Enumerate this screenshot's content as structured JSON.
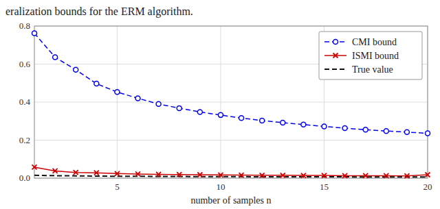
{
  "chart_data": {
    "type": "line",
    "title": "eralization bounds for the ERM algorithm.",
    "x_label": "number of samples n",
    "x": [
      1,
      2,
      3,
      4,
      5,
      6,
      7,
      8,
      9,
      10,
      11,
      12,
      13,
      14,
      15,
      16,
      17,
      18,
      19,
      20
    ],
    "series": [
      {
        "name": "CMI bound",
        "color": "#0000ee",
        "marker": "circle",
        "line_style": "dashed",
        "values": [
          0.762,
          0.636,
          0.57,
          0.497,
          0.453,
          0.42,
          0.39,
          0.368,
          0.348,
          0.332,
          0.316,
          0.303,
          0.292,
          0.282,
          0.272,
          0.263,
          0.255,
          0.248,
          0.242,
          0.236
        ]
      },
      {
        "name": "ISMI bound",
        "color": "#cc0000",
        "marker": "x",
        "line_style": "solid",
        "values": [
          0.058,
          0.038,
          0.03,
          0.028,
          0.024,
          0.022,
          0.02,
          0.019,
          0.018,
          0.017,
          0.016,
          0.015,
          0.015,
          0.014,
          0.014,
          0.013,
          0.013,
          0.013,
          0.012,
          0.018
        ]
      },
      {
        "name": "True value",
        "color": "#111111",
        "marker": "none",
        "line_style": "dashed",
        "values": [
          0.015,
          0.013,
          0.012,
          0.011,
          0.01,
          0.01,
          0.009,
          0.009,
          0.008,
          0.008,
          0.008,
          0.007,
          0.007,
          0.007,
          0.007,
          0.007,
          0.006,
          0.006,
          0.006,
          0.006
        ]
      }
    ],
    "xlim": [
      1,
      20
    ],
    "ylim": [
      0,
      0.8
    ],
    "xticks": [
      5,
      10,
      15,
      20
    ],
    "yticks": [
      {
        "value": 0,
        "label": "0.0"
      },
      0.2,
      0.4,
      0.6,
      0.8
    ],
    "grid": true,
    "legend": "upper right"
  }
}
